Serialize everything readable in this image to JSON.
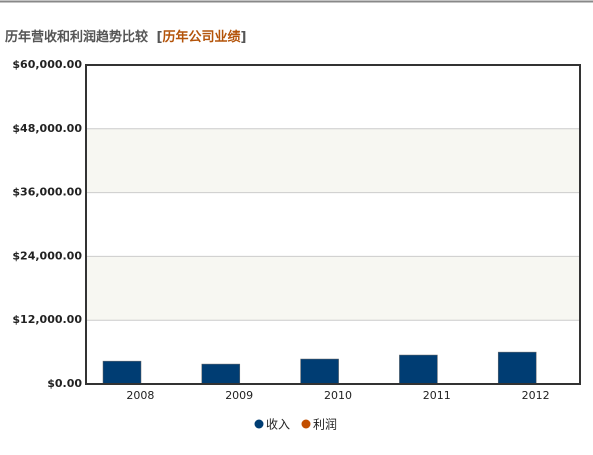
{
  "chart_data": {
    "type": "bar",
    "title": "历年营收和利润趋势比较",
    "title_brackets": [
      "[",
      "]"
    ],
    "title_link": "历年公司业绩",
    "categories": [
      "2008",
      "2009",
      "2010",
      "2011",
      "2012"
    ],
    "series": [
      {
        "name": "收入",
        "color": "#003d73",
        "values": [
          4300,
          3750,
          4700,
          5450,
          6000
        ]
      },
      {
        "name": "利润",
        "color": "#c24e00",
        "values": [
          null,
          null,
          null,
          null,
          null
        ]
      }
    ],
    "ylim": [
      0,
      60000
    ],
    "yticks": [
      {
        "value": 0,
        "label": "$0.00"
      },
      {
        "value": 12000,
        "label": "$12,000.00"
      },
      {
        "value": 24000,
        "label": "$24,000.00"
      },
      {
        "value": 36000,
        "label": "$36,000.00"
      },
      {
        "value": 48000,
        "label": "$48,000.00"
      },
      {
        "value": 60000,
        "label": "$60,000.00"
      }
    ],
    "grid": true
  }
}
